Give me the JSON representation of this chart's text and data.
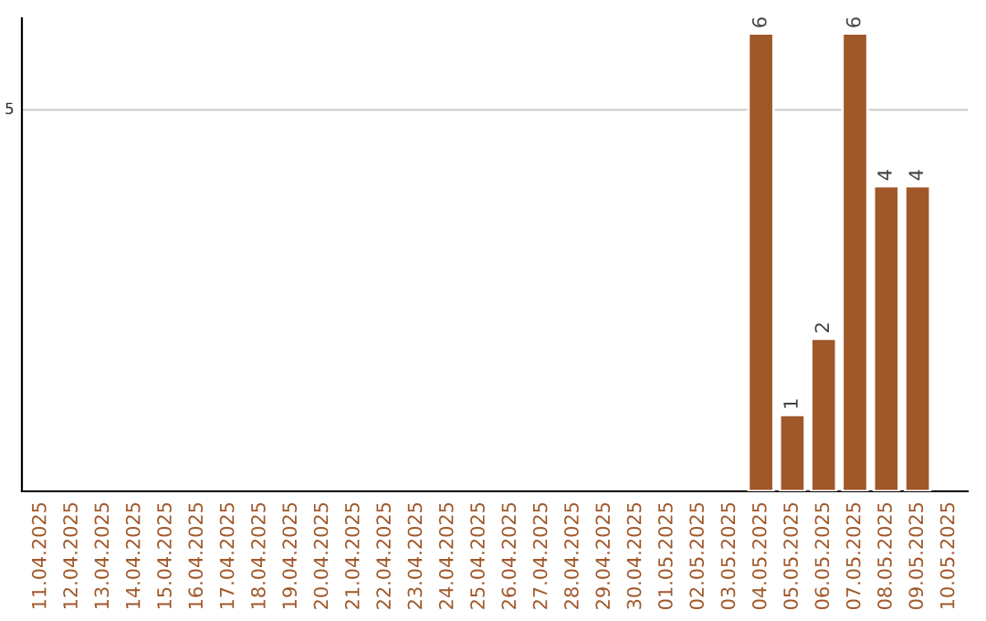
{
  "chart_data": {
    "type": "bar",
    "categories": [
      "11.04.2025",
      "12.04.2025",
      "13.04.2025",
      "14.04.2025",
      "15.04.2025",
      "16.04.2025",
      "17.04.2025",
      "18.04.2025",
      "19.04.2025",
      "20.04.2025",
      "21.04.2025",
      "22.04.2025",
      "23.04.2025",
      "24.04.2025",
      "25.04.2025",
      "26.04.2025",
      "27.04.2025",
      "28.04.2025",
      "29.04.2025",
      "30.04.2025",
      "01.05.2025",
      "02.05.2025",
      "03.05.2025",
      "04.05.2025",
      "05.05.2025",
      "06.05.2025",
      "07.05.2025",
      "08.05.2025",
      "09.05.2025",
      "10.05.2025"
    ],
    "values": [
      null,
      null,
      null,
      null,
      null,
      null,
      null,
      null,
      null,
      null,
      null,
      null,
      null,
      null,
      null,
      null,
      null,
      null,
      null,
      null,
      null,
      null,
      null,
      6,
      1,
      2,
      6,
      4,
      4,
      null
    ],
    "value_labels": [
      null,
      null,
      null,
      null,
      null,
      null,
      null,
      null,
      null,
      null,
      null,
      null,
      null,
      null,
      null,
      null,
      null,
      null,
      null,
      null,
      null,
      null,
      null,
      "6",
      "1",
      "2",
      "6",
      "4",
      "4",
      null
    ],
    "color": "#a0582a",
    "ylim": [
      0,
      6.2
    ],
    "ref_lines": [
      {
        "axis": "y",
        "value": 5,
        "label": "5",
        "color": "#cccccc"
      }
    ]
  }
}
